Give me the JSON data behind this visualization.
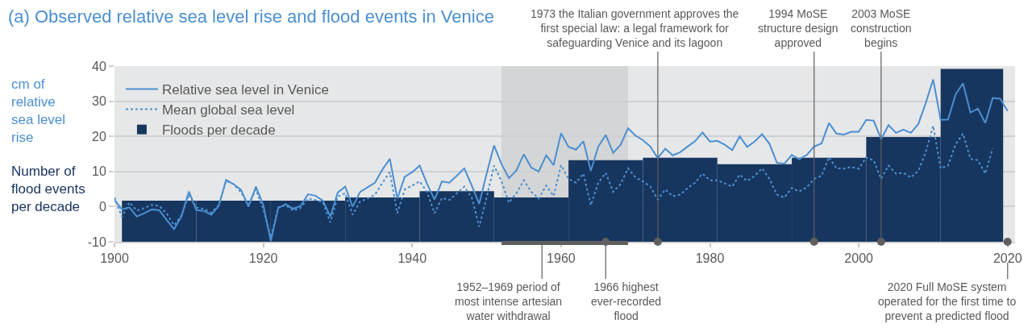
{
  "chart_data": {
    "type": "line",
    "title": "(a) Observed relative sea level rise and flood events in Venice",
    "ylabel": "cm of relative sea level rise",
    "annotations": [
      "Number of flood events per decade"
    ],
    "xlim": [
      1900,
      2021
    ],
    "xticks": [
      1900,
      1920,
      1940,
      1960,
      1980,
      2000,
      2020
    ],
    "ylim": [
      -10,
      40
    ],
    "yticks": [
      -10,
      0,
      10,
      20,
      30,
      40
    ],
    "grid": "y",
    "legend": "top left",
    "series": [
      {
        "name": "Relative sea level in Venice",
        "line_style": "solid",
        "color": "#4a8fd1",
        "x": [
          1900,
          1901,
          1902,
          1903,
          1904,
          1905,
          1906,
          1907,
          1908,
          1909,
          1910,
          1911,
          1912,
          1913,
          1914,
          1915,
          1916,
          1917,
          1918,
          1919,
          1920,
          1921,
          1922,
          1923,
          1924,
          1925,
          1926,
          1927,
          1928,
          1929,
          1930,
          1931,
          1932,
          1933,
          1934,
          1935,
          1936,
          1937,
          1938,
          1939,
          1940,
          1941,
          1942,
          1943,
          1944,
          1945,
          1946,
          1947,
          1948,
          1949,
          1950,
          1951,
          1952,
          1953,
          1954,
          1955,
          1956,
          1957,
          1958,
          1959,
          1960,
          1961,
          1962,
          1963,
          1964,
          1965,
          1966,
          1967,
          1968,
          1969,
          1970,
          1971,
          1972,
          1973,
          1974,
          1975,
          1976,
          1977,
          1978,
          1979,
          1980,
          1981,
          1982,
          1983,
          1984,
          1985,
          1986,
          1987,
          1988,
          1989,
          1990,
          1991,
          1992,
          1993,
          1994,
          1995,
          1996,
          1997,
          1998,
          1999,
          2000,
          2001,
          2002,
          2003,
          2004,
          2005,
          2006,
          2007,
          2008,
          2009,
          2010,
          2011,
          2012,
          2013,
          2014,
          2015,
          2016,
          2017,
          2018,
          2019,
          2020
        ],
        "values": [
          1.9,
          -0.8,
          -0.2,
          -2.8,
          -1.9,
          -0.8,
          -1.0,
          -3.8,
          -6.4,
          -2.8,
          4.3,
          -1.0,
          -1.2,
          -2.3,
          0.2,
          7.6,
          6.4,
          4.8,
          0.0,
          5.7,
          0.4,
          -9.8,
          -0.4,
          0.7,
          -0.6,
          0.2,
          3.5,
          3.1,
          1.7,
          -2.8,
          4.0,
          5.7,
          0.0,
          4.2,
          5.5,
          6.8,
          10.6,
          13.6,
          2.3,
          8.5,
          9.8,
          11.7,
          6.5,
          2.0,
          7.2,
          6.8,
          8.8,
          10.9,
          6.0,
          0.8,
          9.4,
          17.4,
          12.1,
          8.1,
          10.3,
          14.9,
          11.1,
          10.0,
          14.6,
          11.8,
          20.9,
          17.0,
          16.2,
          18.6,
          10.2,
          17.1,
          20.4,
          15.3,
          17.6,
          22.3,
          20.2,
          18.9,
          17.1,
          13.8,
          16.5,
          14.6,
          15.5,
          17.1,
          18.6,
          21.1,
          18.5,
          18.7,
          17.6,
          16.1,
          20.0,
          17.0,
          18.5,
          20.6,
          17.9,
          12.5,
          12.2,
          14.7,
          13.5,
          14.7,
          17.1,
          18.0,
          23.8,
          20.8,
          20.5,
          21.3,
          21.3,
          24.7,
          24.5,
          19.2,
          23.2,
          21.0,
          21.9,
          21.0,
          23.5,
          29.5,
          36.2,
          24.7,
          24.8,
          31.9,
          35.1,
          26.8,
          27.9,
          23.8,
          30.9,
          30.7,
          27.2
        ]
      },
      {
        "name": "Mean global sea level",
        "line_style": "dotted",
        "color": "#4a8fd1",
        "x": [
          1900,
          1901,
          1902,
          1903,
          1904,
          1905,
          1906,
          1907,
          1908,
          1909,
          1910,
          1911,
          1912,
          1913,
          1914,
          1915,
          1916,
          1917,
          1918,
          1919,
          1920,
          1921,
          1922,
          1923,
          1924,
          1925,
          1926,
          1927,
          1928,
          1929,
          1930,
          1931,
          1932,
          1933,
          1934,
          1935,
          1936,
          1937,
          1938,
          1939,
          1940,
          1941,
          1942,
          1943,
          1944,
          1945,
          1946,
          1947,
          1948,
          1949,
          1950,
          1951,
          1952,
          1953,
          1954,
          1955,
          1956,
          1957,
          1958,
          1959,
          1960,
          1961,
          1962,
          1963,
          1964,
          1965,
          1966,
          1967,
          1968,
          1969,
          1970,
          1971,
          1972,
          1973,
          1974,
          1975,
          1976,
          1977,
          1978,
          1979,
          1980,
          1981,
          1982,
          1983,
          1984,
          1985,
          1986,
          1987,
          1988,
          1989,
          1990,
          1991,
          1992,
          1993,
          1994,
          1995,
          1996,
          1997,
          1998,
          1999,
          2000,
          2001,
          2002,
          2003,
          2004,
          2005,
          2006,
          2007,
          2008,
          2009,
          2010,
          2011,
          2012,
          2013,
          2014,
          2015,
          2016,
          2017,
          2018
        ],
        "values": [
          2.6,
          -2.9,
          1.2,
          -1.1,
          -0.4,
          0.5,
          0.2,
          -1.9,
          -5.3,
          -2.5,
          3.4,
          -0.3,
          -0.6,
          -1.7,
          0.4,
          7.3,
          6.4,
          4.1,
          0.4,
          4.9,
          -0.8,
          -8.7,
          -0.2,
          0.4,
          -1.1,
          -0.4,
          2.3,
          1.9,
          1.2,
          -4.5,
          2.9,
          3.8,
          -2.3,
          1.5,
          2.3,
          3.4,
          6.8,
          9.8,
          -1.9,
          4.9,
          6.0,
          7.2,
          4.2,
          -1.9,
          2.5,
          1.9,
          3.8,
          5.7,
          2.6,
          -5.7,
          2.6,
          11.7,
          7.2,
          1.1,
          3.8,
          7.5,
          4.2,
          2.3,
          6.0,
          3.0,
          11.8,
          7.9,
          6.8,
          9.4,
          0.4,
          6.8,
          9.6,
          4.2,
          6.4,
          10.9,
          8.3,
          7.2,
          5.7,
          2.0,
          4.9,
          3.0,
          3.4,
          5.3,
          6.8,
          9.4,
          7.5,
          7.5,
          6.6,
          5.7,
          9.1,
          7.3,
          8.7,
          10.9,
          7.9,
          3.4,
          2.6,
          5.3,
          4.3,
          5.5,
          7.9,
          8.8,
          14.1,
          10.9,
          10.8,
          11.3,
          10.8,
          14.0,
          13.2,
          7.9,
          11.7,
          9.4,
          9.6,
          8.3,
          10.2,
          15.5,
          23.0,
          10.9,
          11.7,
          17.7,
          20.8,
          13.6,
          13.2,
          9.4,
          16.6
        ]
      },
      {
        "name": "Floods per decade",
        "type": "bar",
        "color": "#17365f",
        "x": [
          1906,
          1916,
          1926,
          1936,
          1946,
          1956,
          1966,
          1976,
          1986,
          1996,
          2006,
          2015.2
        ],
        "base": [
          -10,
          -10,
          -10,
          -10,
          -10,
          -10,
          -10,
          -10,
          -10,
          -10,
          -10,
          -10
        ],
        "values": [
          11.7,
          11.7,
          11.7,
          12.6,
          14.4,
          12.6,
          23.2,
          23.9,
          22.1,
          23.9,
          29.8,
          49.2
        ]
      }
    ],
    "ref_lines": [
      {
        "axis": "x",
        "value": 1966,
        "label": "1966 highest ever-recorded flood",
        "color": "#5f5f5f"
      },
      {
        "axis": "x",
        "value": 1973,
        "label": "1973 the Italian government approves the first special law: a legal framework for safeguarding Venice and its lagoon",
        "color": "#5f5f5f"
      },
      {
        "axis": "x",
        "value": 1994,
        "label": "1994 MoSE structure design approved",
        "color": "#5f5f5f"
      },
      {
        "axis": "x",
        "value": 2003,
        "label": "2003 MoSE construction begins",
        "color": "#5f5f5f"
      },
      {
        "axis": "x",
        "value": 2020,
        "label": "2020 Full MoSE system operated for the first time to prevent a predicted flood",
        "color": "#5f5f5f"
      }
    ],
    "bands": [
      {
        "axis": "x",
        "from": 1952,
        "to": 1969,
        "label": "1952–1969 period of most intense artesian water withdrawal",
        "color": "#5f5f5f"
      }
    ]
  }
}
